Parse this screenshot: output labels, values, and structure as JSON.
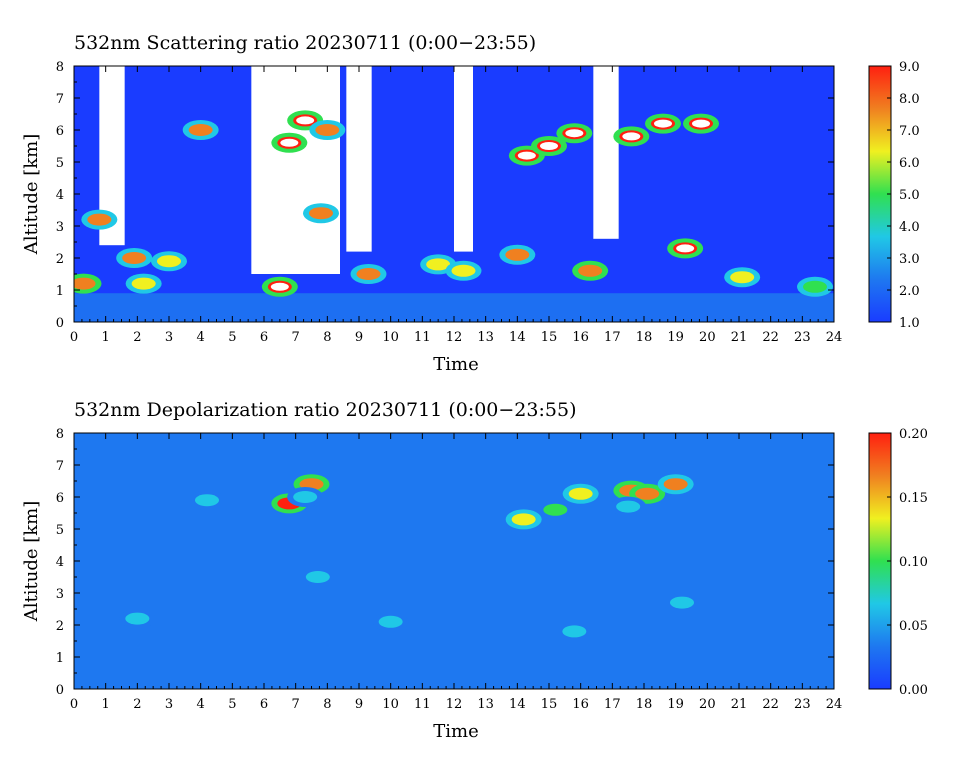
{
  "chart_data": [
    {
      "type": "heatmap",
      "title": "532nm Scattering ratio  20230711 (0:00−23:55)",
      "xlabel": "Time",
      "ylabel": "Altitude [km]",
      "xlim": [
        0,
        24
      ],
      "ylim": [
        0,
        8
      ],
      "x_ticks": [
        "0",
        "1",
        "2",
        "3",
        "4",
        "5",
        "6",
        "7",
        "8",
        "9",
        "10",
        "11",
        "12",
        "13",
        "14",
        "15",
        "16",
        "17",
        "18",
        "19",
        "20",
        "21",
        "22",
        "23",
        "24"
      ],
      "y_ticks": [
        "0",
        "1",
        "2",
        "3",
        "4",
        "5",
        "6",
        "7",
        "8"
      ],
      "colorbar": {
        "range": [
          1.0,
          9.0
        ],
        "ticks": [
          "1.0",
          "2.0",
          "3.0",
          "4.0",
          "5.0",
          "6.0",
          "7.0",
          "8.0",
          "9.0"
        ]
      },
      "colormap": [
        "#1a3cff",
        "#1e78f0",
        "#20c8e6",
        "#30e050",
        "#f0f020",
        "#f08020",
        "#ff2010"
      ],
      "background_value": 1.6,
      "surface_layer": {
        "y_range": [
          0,
          0.9
        ],
        "value": 2.6
      },
      "clear_sky_regions": [
        {
          "x_range": [
            0.8,
            1.6
          ],
          "y_range": [
            2.4,
            8
          ]
        },
        {
          "x_range": [
            5.6,
            8.4
          ],
          "y_range": [
            1.5,
            8
          ]
        },
        {
          "x_range": [
            8.6,
            9.4
          ],
          "y_range": [
            2.2,
            8
          ]
        },
        {
          "x_range": [
            12.0,
            12.6
          ],
          "y_range": [
            2.2,
            8
          ]
        },
        {
          "x_range": [
            16.4,
            17.2
          ],
          "y_range": [
            2.6,
            8
          ]
        }
      ],
      "features": [
        {
          "x": 0.3,
          "y": 1.2,
          "value": 8.0
        },
        {
          "x": 0.8,
          "y": 3.2,
          "value": 7.0
        },
        {
          "x": 1.9,
          "y": 2.0,
          "value": 7.5
        },
        {
          "x": 2.2,
          "y": 1.2,
          "value": 6.5
        },
        {
          "x": 3.0,
          "y": 1.9,
          "value": 6.0
        },
        {
          "x": 4.0,
          "y": 6.0,
          "value": 7.0
        },
        {
          "x": 6.5,
          "y": 1.1,
          "value": 9.0
        },
        {
          "x": 6.8,
          "y": 5.6,
          "value": 9.0
        },
        {
          "x": 7.3,
          "y": 6.3,
          "value": 9.0
        },
        {
          "x": 7.8,
          "y": 3.4,
          "value": 7.5
        },
        {
          "x": 8.0,
          "y": 6.0,
          "value": 7.0
        },
        {
          "x": 9.3,
          "y": 1.5,
          "value": 7.0
        },
        {
          "x": 11.5,
          "y": 1.8,
          "value": 6.5
        },
        {
          "x": 12.3,
          "y": 1.6,
          "value": 6.5
        },
        {
          "x": 14.0,
          "y": 2.1,
          "value": 7.0
        },
        {
          "x": 14.3,
          "y": 5.2,
          "value": 9.0
        },
        {
          "x": 15.0,
          "y": 5.5,
          "value": 9.0
        },
        {
          "x": 15.8,
          "y": 5.9,
          "value": 9.0
        },
        {
          "x": 16.3,
          "y": 1.6,
          "value": 8.0
        },
        {
          "x": 17.6,
          "y": 5.8,
          "value": 9.0
        },
        {
          "x": 18.6,
          "y": 6.2,
          "value": 9.0
        },
        {
          "x": 19.3,
          "y": 2.3,
          "value": 9.0
        },
        {
          "x": 19.8,
          "y": 6.2,
          "value": 9.0
        },
        {
          "x": 21.1,
          "y": 1.4,
          "value": 6.5
        },
        {
          "x": 23.4,
          "y": 1.1,
          "value": 5.0
        }
      ]
    },
    {
      "type": "heatmap",
      "title": "532nm Depolarization ratio  20230711 (0:00−23:55)",
      "xlabel": "Time",
      "ylabel": "Altitude [km]",
      "xlim": [
        0,
        24
      ],
      "ylim": [
        0,
        8
      ],
      "x_ticks": [
        "0",
        "1",
        "2",
        "3",
        "4",
        "5",
        "6",
        "7",
        "8",
        "9",
        "10",
        "11",
        "12",
        "13",
        "14",
        "15",
        "16",
        "17",
        "18",
        "19",
        "20",
        "21",
        "22",
        "23",
        "24"
      ],
      "y_ticks": [
        "0",
        "1",
        "2",
        "3",
        "4",
        "5",
        "6",
        "7",
        "8"
      ],
      "colorbar": {
        "range": [
          0.0,
          0.2
        ],
        "ticks": [
          "0.00",
          "0.05",
          "0.10",
          "0.15",
          "0.20"
        ]
      },
      "colormap": [
        "#1a3cff",
        "#1e78f0",
        "#20c8e6",
        "#30e050",
        "#f0f020",
        "#f08020",
        "#ff2010"
      ],
      "background_value": 0.03,
      "surface_layer": {
        "y_range": [
          0,
          0.15
        ],
        "value": 0.04
      },
      "features": [
        {
          "x": 6.8,
          "y": 5.8,
          "value": 0.19
        },
        {
          "x": 7.5,
          "y": 6.4,
          "value": 0.17
        },
        {
          "x": 7.3,
          "y": 6.0,
          "value": 0.08
        },
        {
          "x": 4.2,
          "y": 5.9,
          "value": 0.07
        },
        {
          "x": 2.0,
          "y": 2.2,
          "value": 0.06
        },
        {
          "x": 7.7,
          "y": 3.5,
          "value": 0.06
        },
        {
          "x": 14.2,
          "y": 5.3,
          "value": 0.12
        },
        {
          "x": 15.2,
          "y": 5.6,
          "value": 0.09
        },
        {
          "x": 16.0,
          "y": 6.1,
          "value": 0.12
        },
        {
          "x": 17.6,
          "y": 6.2,
          "value": 0.17
        },
        {
          "x": 18.1,
          "y": 6.1,
          "value": 0.17
        },
        {
          "x": 19.0,
          "y": 6.4,
          "value": 0.16
        },
        {
          "x": 17.5,
          "y": 5.7,
          "value": 0.08
        },
        {
          "x": 19.2,
          "y": 2.7,
          "value": 0.05
        },
        {
          "x": 10.0,
          "y": 2.1,
          "value": 0.05
        },
        {
          "x": 15.8,
          "y": 1.8,
          "value": 0.05
        }
      ]
    }
  ]
}
